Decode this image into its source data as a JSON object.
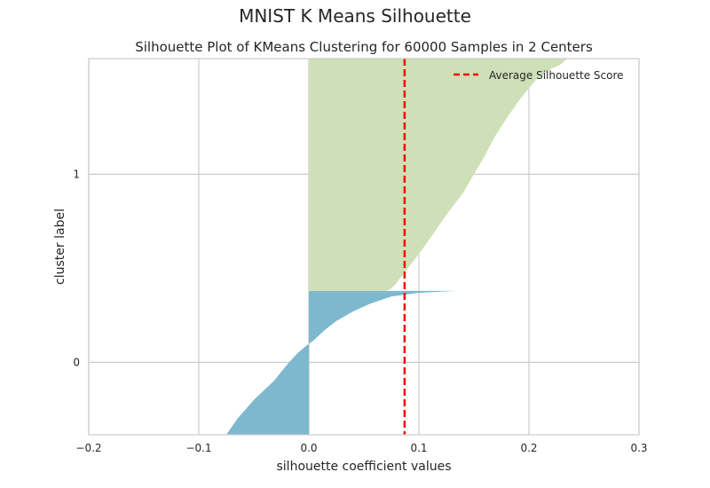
{
  "figure": {
    "title": "MNIST K Means Silhouette"
  },
  "chart_data": {
    "type": "area",
    "title": "Silhouette Plot of KMeans Clustering for 60000 Samples in 2 Centers",
    "xlabel": "silhouette coefficient values",
    "ylabel": "cluster label",
    "xlim": [
      -0.2,
      0.3
    ],
    "x_ticks": [
      -0.2,
      -0.1,
      0.0,
      0.1,
      0.2,
      0.3
    ],
    "x_tick_labels": [
      "−0.2",
      "−0.1",
      "0.0",
      "0.1",
      "0.2",
      "0.3"
    ],
    "y_ticks": [
      0,
      1
    ],
    "y_tick_labels": [
      "0",
      "1"
    ],
    "ylim": [
      -0.385,
      1.615
    ],
    "grid": true,
    "legend_position": "top-right",
    "average_silhouette_score": 0.087,
    "series": [
      {
        "cluster": 0,
        "color": "#7db8cf",
        "profile": [
          [
            -0.385,
            -0.075
          ],
          [
            -0.3,
            -0.065
          ],
          [
            -0.2,
            -0.05
          ],
          [
            -0.1,
            -0.032
          ],
          [
            0.0,
            -0.018
          ],
          [
            0.05,
            -0.01
          ],
          [
            0.09,
            -0.002
          ],
          [
            0.115,
            0.004
          ],
          [
            0.17,
            0.014
          ],
          [
            0.22,
            0.025
          ],
          [
            0.27,
            0.04
          ],
          [
            0.31,
            0.055
          ],
          [
            0.35,
            0.075
          ],
          [
            0.37,
            0.1
          ],
          [
            0.38,
            0.135
          ]
        ]
      },
      {
        "cluster": 1,
        "color": "#cfe0b8",
        "profile": [
          [
            0.38,
            0.07
          ],
          [
            0.39,
            0.074
          ],
          [
            0.41,
            0.078
          ],
          [
            0.5,
            0.09
          ],
          [
            0.6,
            0.103
          ],
          [
            0.7,
            0.115
          ],
          [
            0.8,
            0.127
          ],
          [
            0.9,
            0.14
          ],
          [
            1.0,
            0.15
          ],
          [
            1.1,
            0.16
          ],
          [
            1.2,
            0.169
          ],
          [
            1.3,
            0.18
          ],
          [
            1.4,
            0.192
          ],
          [
            1.5,
            0.206
          ],
          [
            1.56,
            0.22
          ],
          [
            1.58,
            0.228
          ],
          [
            1.615,
            0.235
          ]
        ]
      }
    ],
    "legend": [
      {
        "label": "Average Silhouette Score",
        "color": "#ff0000",
        "style": "dashed"
      }
    ]
  }
}
